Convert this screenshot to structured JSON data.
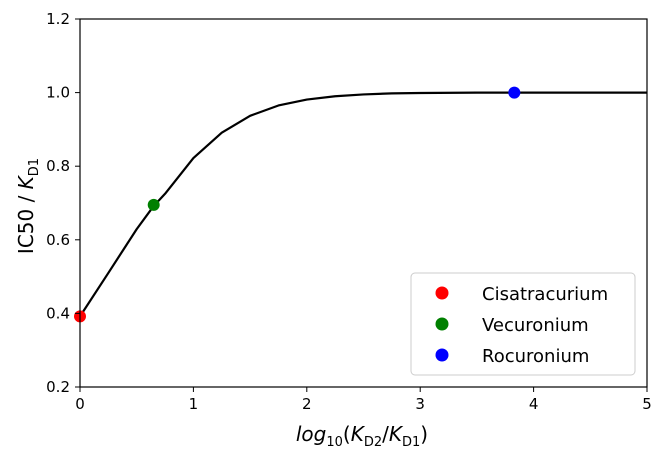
{
  "chart_data": {
    "type": "scatter",
    "xlabel": {
      "pre": "log",
      "pre_sub": "10",
      "open": "(",
      "k1": "K",
      "k1_sub": "D2",
      "slash": "/",
      "k2": "K",
      "k2_sub": "D1",
      "close": ")"
    },
    "ylabel": {
      "main": "IC50 / ",
      "k": "K",
      "k_sub": "D1"
    },
    "xlim": [
      0,
      5
    ],
    "ylim": [
      0.2,
      1.2
    ],
    "xticks": [
      "0",
      "1",
      "2",
      "3",
      "4",
      "5"
    ],
    "yticks": [
      "0.2",
      "0.4",
      "0.6",
      "0.8",
      "1.0",
      "1.2"
    ],
    "grid": false,
    "legend_position": "bottom-right",
    "curve": {
      "color": "#000000",
      "x": [
        0,
        0.25,
        0.5,
        0.65,
        0.75,
        1.0,
        1.25,
        1.5,
        1.75,
        2.0,
        2.25,
        2.5,
        2.75,
        3.0,
        3.5,
        4.0,
        4.5,
        5.0
      ],
      "y": [
        0.392,
        0.51,
        0.629,
        0.692,
        0.725,
        0.822,
        0.891,
        0.937,
        0.965,
        0.981,
        0.99,
        0.995,
        0.998,
        0.999,
        1.0,
        1.0,
        1.0,
        1.0
      ]
    },
    "series": [
      {
        "name": "Cisatracurium",
        "color": "#ff0000",
        "x": 0.0,
        "y": 0.392
      },
      {
        "name": "Vecuronium",
        "color": "#008000",
        "x": 0.65,
        "y": 0.695
      },
      {
        "name": "Rocuronium",
        "color": "#0000ff",
        "x": 3.83,
        "y": 1.0
      }
    ]
  }
}
